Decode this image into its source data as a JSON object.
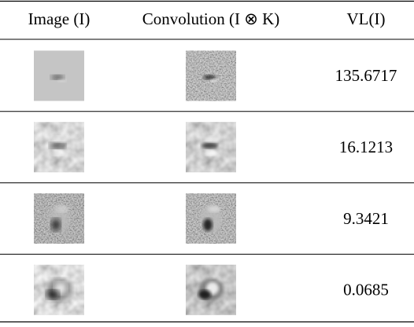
{
  "table": {
    "header": [
      "Image (I)",
      "Convolution (I ⊗ K)",
      "VL(I)"
    ],
    "rows": [
      {
        "value": 135.6717
      },
      {
        "value": 16.1213
      },
      {
        "value": 9.3421
      },
      {
        "value": 0.0685
      }
    ]
  }
}
